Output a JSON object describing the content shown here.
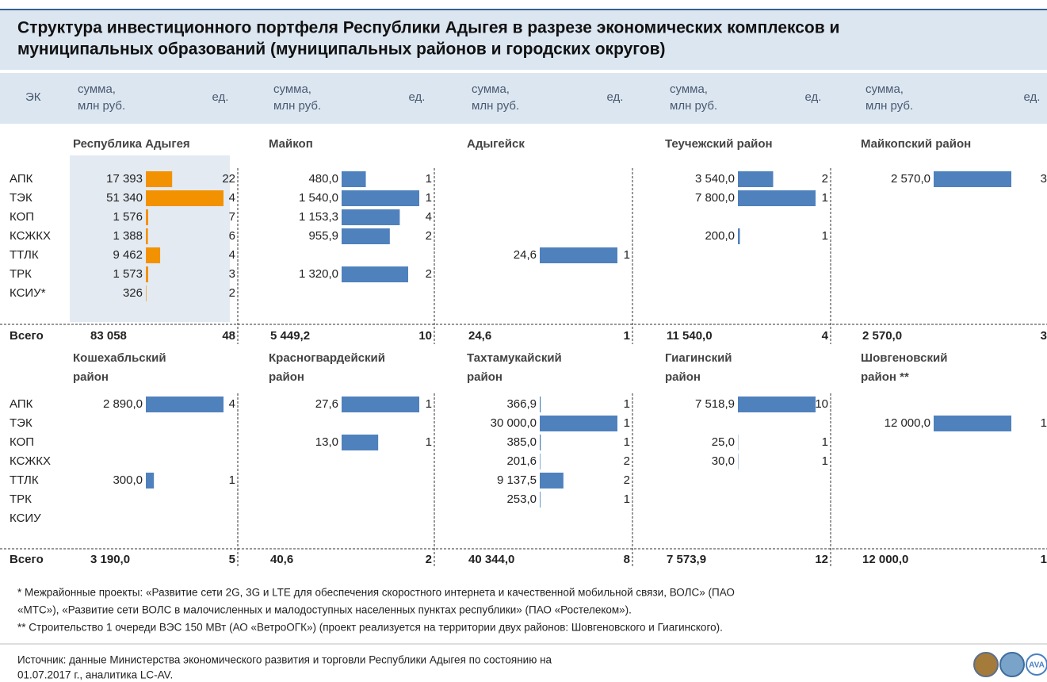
{
  "header": {
    "title": [
      "Структура инвестиционного портфеля Республики Адыгея в разрезе экономических комплексов и",
      "муниципальных образований (муниципальных районов и городских округов)"
    ]
  },
  "columns": {
    "ek": "ЭК",
    "groups": [
      {
        "sum": [
          "сумма,",
          "млн руб."
        ],
        "unit": "ед."
      },
      {
        "sum": [
          "сумма,",
          "млн руб."
        ],
        "unit": "ед."
      },
      {
        "sum": [
          "сумма,",
          "млн руб."
        ],
        "unit": "ед."
      },
      {
        "sum": [
          "сумма,",
          "млн руб."
        ],
        "unit": "ед."
      },
      {
        "sum": [
          "сумма,",
          "млн руб."
        ],
        "unit": "ед."
      }
    ]
  },
  "panels": [
    {
      "rows": [
        "АПК",
        "ТЭК",
        "КОП",
        "КСЖКХ",
        "ТТЛК",
        "ТРК",
        "КСИУ*"
      ],
      "total_label": "Всего",
      "areas": [
        {
          "name": [
            "Республика Адыгея"
          ],
          "bar_color": "#f39200",
          "cells": [
            {
              "label": "17 393",
              "value": 17393,
              "count": 22
            },
            {
              "label": "51 340",
              "value": 51340,
              "count": 4
            },
            {
              "label": "1 576",
              "value": 1576,
              "count": 7
            },
            {
              "label": "1 388",
              "value": 1388,
              "count": 6
            },
            {
              "label": "9 462",
              "value": 9462,
              "count": 4
            },
            {
              "label": "1 573",
              "value": 1573,
              "count": 3
            },
            {
              "label": "326",
              "value": 326,
              "count": 2
            }
          ],
          "total": "83 058",
          "total_count": 48
        },
        {
          "name": [
            "Майкоп"
          ],
          "bar_color": "#4f81bd",
          "cells": [
            {
              "label": "480,0",
              "value": 480,
              "count": 1
            },
            {
              "label": "1 540,0",
              "value": 1540,
              "count": 1
            },
            {
              "label": "1 153,3",
              "value": 1153.3,
              "count": 4
            },
            {
              "label": "955,9",
              "value": 955.9,
              "count": 2
            },
            null,
            {
              "label": "1 320,0",
              "value": 1320,
              "count": 2
            },
            null
          ],
          "total": "5 449,2",
          "total_count": 10
        },
        {
          "name": [
            "Адыгейск"
          ],
          "bar_color": "#4f81bd",
          "cells": [
            null,
            null,
            null,
            null,
            {
              "label": "24,6",
              "value": 24.6,
              "count": 1
            },
            null,
            null
          ],
          "total": "24,6",
          "total_count": 1
        },
        {
          "name": [
            "Теучежский район"
          ],
          "bar_color": "#4f81bd",
          "cells": [
            {
              "label": "3 540,0",
              "value": 3540,
              "count": 2
            },
            {
              "label": "7 800,0",
              "value": 7800,
              "count": 1
            },
            null,
            {
              "label": "200,0",
              "value": 200,
              "count": 1
            },
            null,
            null,
            null
          ],
          "total": "11 540,0",
          "total_count": 4
        },
        {
          "name": [
            "Майкопский район"
          ],
          "bar_color": "#4f81bd",
          "cells": [
            {
              "label": "2 570,0",
              "value": 2570,
              "count": 3
            },
            null,
            null,
            null,
            null,
            null,
            null
          ],
          "total": "2 570,0",
          "total_count": 3
        }
      ]
    },
    {
      "rows": [
        "АПК",
        "ТЭК",
        "КОП",
        "КСЖКХ",
        "ТТЛК",
        "ТРК",
        "КСИУ"
      ],
      "total_label": "Всего",
      "areas": [
        {
          "name": [
            "Кошехабльский",
            "район"
          ],
          "bar_color": "#4f81bd",
          "cells": [
            {
              "label": "2 890,0",
              "value": 2890,
              "count": 4
            },
            null,
            null,
            null,
            {
              "label": "300,0",
              "value": 300,
              "count": 1
            },
            null,
            null
          ],
          "total": "3 190,0",
          "total_count": 5
        },
        {
          "name": [
            "Красногвардейский",
            "район"
          ],
          "bar_color": "#4f81bd",
          "cells": [
            {
              "label": "27,6",
              "value": 27.6,
              "count": 1
            },
            null,
            {
              "label": "13,0",
              "value": 13,
              "count": 1
            },
            null,
            null,
            null,
            null
          ],
          "total": "40,6",
          "total_count": 2
        },
        {
          "name": [
            "Тахтамукайский",
            "район"
          ],
          "bar_color": "#4f81bd",
          "cells": [
            {
              "label": "366,9",
              "value": 366.9,
              "count": 1
            },
            {
              "label": "30 000,0",
              "value": 30000,
              "count": 1
            },
            {
              "label": "385,0",
              "value": 385,
              "count": 1
            },
            {
              "label": "201,6",
              "value": 201.6,
              "count": 2
            },
            {
              "label": "9 137,5",
              "value": 9137.5,
              "count": 2
            },
            {
              "label": "253,0",
              "value": 253,
              "count": 1
            },
            null
          ],
          "total": "40 344,0",
          "total_count": 8
        },
        {
          "name": [
            "Гиагинский",
            "район"
          ],
          "bar_color": "#4f81bd",
          "cells": [
            {
              "label": "7 518,9",
              "value": 7518.9,
              "count": 10
            },
            null,
            {
              "label": "25,0",
              "value": 25,
              "count": 1
            },
            {
              "label": "30,0",
              "value": 30,
              "count": 1
            },
            null,
            null,
            null
          ],
          "total": "7 573,9",
          "total_count": 12
        },
        {
          "name": [
            "Шовгеновский",
            "район **"
          ],
          "bar_color": "#4f81bd",
          "cells": [
            null,
            {
              "label": "12 000,0",
              "value": 12000,
              "count": 1
            },
            null,
            null,
            null,
            null,
            null
          ],
          "total": "12 000,0",
          "total_count": 1
        }
      ]
    }
  ],
  "footnotes": [
    "* Межрайонные проекты: «Развитие сети 2G, 3G и LTE для обеспечения скоростного интернета и качественной мобильной связи, ВОЛС» (ПАО",
    "«МТС»), «Развитие сети ВОЛС в малочисленных и малодоступных населенных пунктах республики» (ПАО «Ростелеком»).",
    "** Строительство 1 очереди ВЭС 150 МВт (АО «ВетроОГК») (проект реализуется на территории двух районов: Шовгеновского и Гиагинского)."
  ],
  "source": [
    "Источник: данные Министерства экономического развития и торговли Республики Адыгея по состоянию на",
    "01.07.2017 г., аналитика LC-AV."
  ],
  "logo_text": "AVA"
}
